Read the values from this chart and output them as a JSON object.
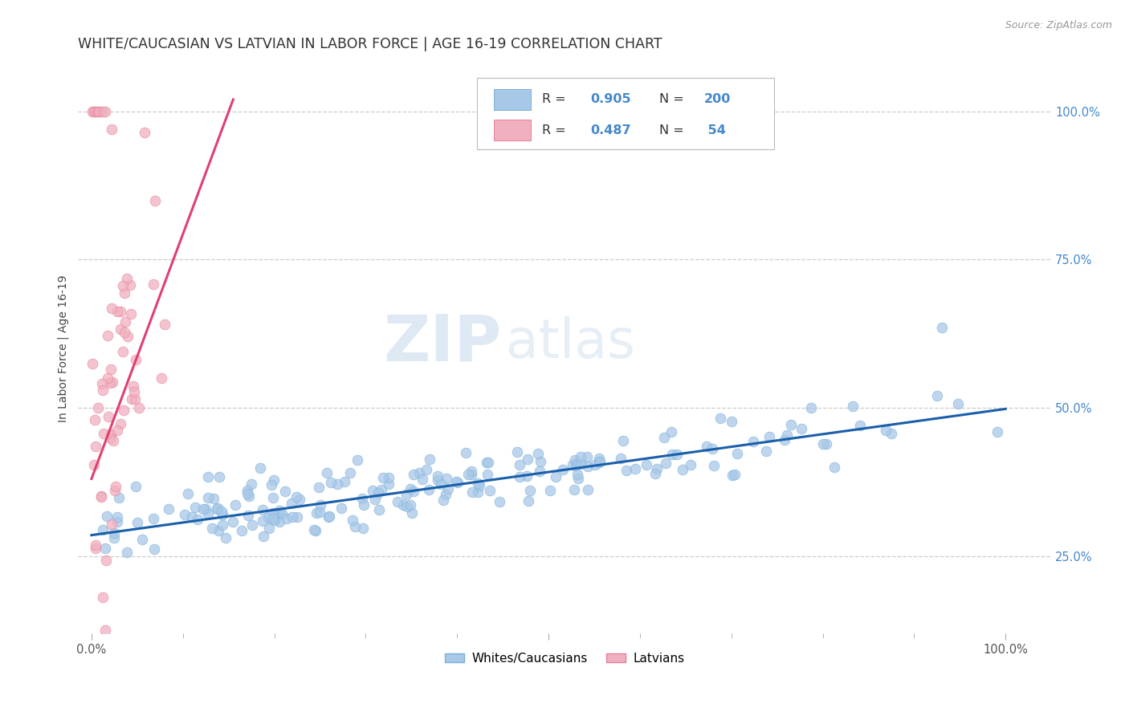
{
  "title": "WHITE/CAUCASIAN VS LATVIAN IN LABOR FORCE | AGE 16-19 CORRELATION CHART",
  "source": "Source: ZipAtlas.com",
  "ylabel": "In Labor Force | Age 16-19",
  "ytick_labels": [
    "25.0%",
    "50.0%",
    "75.0%",
    "100.0%"
  ],
  "ytick_values": [
    0.25,
    0.5,
    0.75,
    1.0
  ],
  "watermark_zip": "ZIP",
  "watermark_atlas": "atlas",
  "blue_scatter_color": "#a8c8e8",
  "blue_scatter_edge": "#7ab0d8",
  "pink_scatter_color": "#f0b0c0",
  "pink_scatter_edge": "#e88098",
  "blue_line_color": "#1a5faa",
  "pink_line_color": "#e04070",
  "blue_line_x": [
    0.0,
    1.0
  ],
  "blue_line_y": [
    0.285,
    0.498
  ],
  "pink_line_x": [
    0.0,
    0.155
  ],
  "pink_line_y": [
    0.38,
    1.02
  ],
  "xmin": -0.015,
  "xmax": 1.05,
  "ymin": 0.12,
  "ymax": 1.08,
  "background_color": "#ffffff",
  "grid_color": "#cccccc",
  "title_fontsize": 12.5,
  "axis_label_fontsize": 10,
  "tick_fontsize": 10.5,
  "legend_box_color": "#ffffff",
  "legend_border_color": "#cccccc",
  "blue_R": "0.905",
  "blue_N": "200",
  "pink_R": "0.487",
  "pink_N": " 54",
  "rv_color": "#4488cc",
  "bottom_legend_blue_label": "Whites/Caucasians",
  "bottom_legend_pink_label": "Latvians"
}
